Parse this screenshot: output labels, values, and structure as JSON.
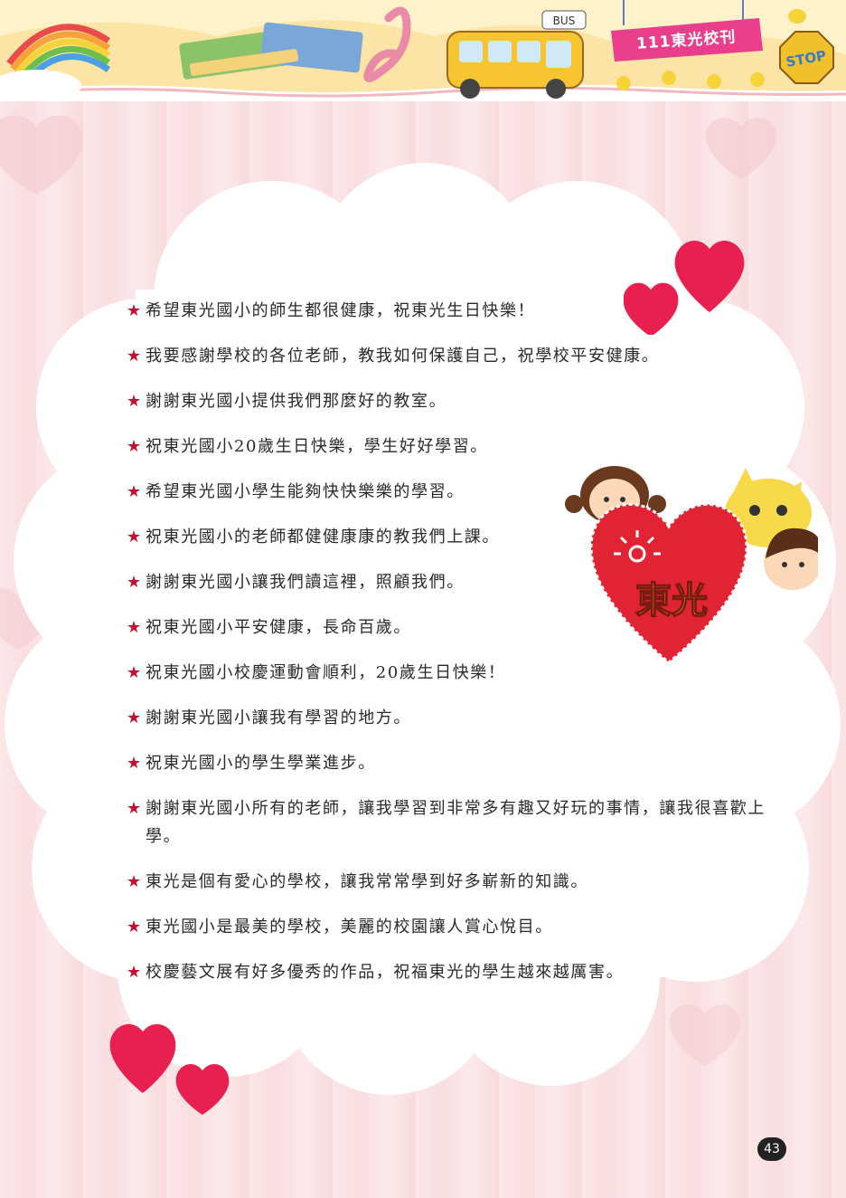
{
  "header": {
    "banner_text": "111東光校刊",
    "stop_sign": "STOP",
    "bus_sign": "BUS"
  },
  "badge": {
    "text": "東光"
  },
  "messages": [
    "希望東光國小的師生都很健康，祝東光生日快樂！",
    "我要感謝學校的各位老師，教我如何保護自己，祝學校平安健康。",
    "謝謝東光國小提供我們那麼好的教室。",
    "祝東光國小20歲生日快樂，學生好好學習。",
    "希望東光國小學生能夠快快樂樂的學習。",
    "祝東光國小的老師都健健康康的教我們上課。",
    "謝謝東光國小讓我們讀這裡，照顧我們。",
    "祝東光國小平安健康，長命百歲。",
    "祝東光國小校慶運動會順利，20歲生日快樂！",
    "謝謝東光國小讓我有學習的地方。",
    "祝東光國小的學生學業進步。",
    "謝謝東光國小所有的老師，讓我學習到非常多有趣又好玩的事情，讓我很喜歡上學。",
    "東光是個有愛心的學校，讓我常常學到好多嶄新的知識。",
    "東光國小是最美的學校，美麗的校園讓人賞心悅目。",
    "校慶藝文展有好多優秀的作品，祝福東光的學生越來越厲害。"
  ],
  "star_glyph": "★",
  "page_number": "43",
  "colors": {
    "heart": "#e8204f",
    "badge_heart": "#e02433",
    "banner": "#e83e8c",
    "star": "#c8102e"
  }
}
